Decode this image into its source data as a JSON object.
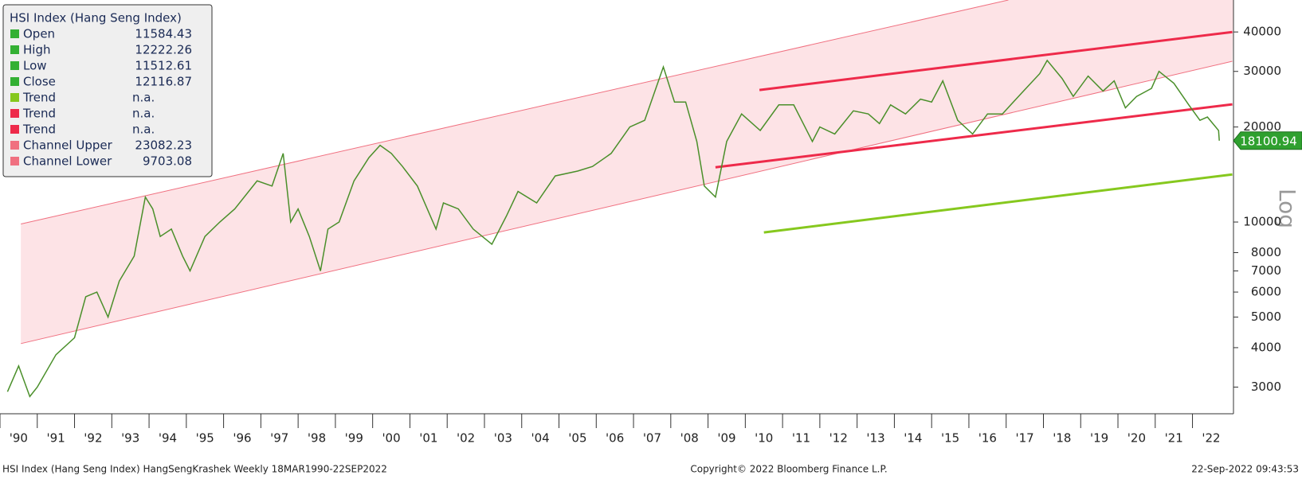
{
  "chart_data": {
    "type": "line",
    "log_scale": true,
    "xlim": [
      1990,
      2023.1
    ],
    "ylim": [
      2470,
      50500
    ],
    "yticks": [
      3000,
      4000,
      5000,
      6000,
      7000,
      8000,
      10000,
      20000,
      30000,
      40000
    ],
    "xticks": [
      {
        "value": 1990.5,
        "label": "'90"
      },
      {
        "value": 1991.5,
        "label": "'91"
      },
      {
        "value": 1992.5,
        "label": "'92"
      },
      {
        "value": 1993.5,
        "label": "'93"
      },
      {
        "value": 1994.5,
        "label": "'94"
      },
      {
        "value": 1995.5,
        "label": "'95"
      },
      {
        "value": 1996.5,
        "label": "'96"
      },
      {
        "value": 1997.5,
        "label": "'97"
      },
      {
        "value": 1998.5,
        "label": "'98"
      },
      {
        "value": 1999.5,
        "label": "'99"
      },
      {
        "value": 2000.5,
        "label": "'00"
      },
      {
        "value": 2001.5,
        "label": "'01"
      },
      {
        "value": 2002.5,
        "label": "'02"
      },
      {
        "value": 2003.5,
        "label": "'03"
      },
      {
        "value": 2004.5,
        "label": "'04"
      },
      {
        "value": 2005.5,
        "label": "'05"
      },
      {
        "value": 2006.5,
        "label": "'06"
      },
      {
        "value": 2007.5,
        "label": "'07"
      },
      {
        "value": 2008.5,
        "label": "'08"
      },
      {
        "value": 2009.5,
        "label": "'09"
      },
      {
        "value": 2010.5,
        "label": "'10"
      },
      {
        "value": 2011.5,
        "label": "'11"
      },
      {
        "value": 2012.5,
        "label": "'12"
      },
      {
        "value": 2013.5,
        "label": "'13"
      },
      {
        "value": 2014.5,
        "label": "'14"
      },
      {
        "value": 2015.5,
        "label": "'15"
      },
      {
        "value": 2016.5,
        "label": "'16"
      },
      {
        "value": 2017.5,
        "label": "'17"
      },
      {
        "value": 2018.5,
        "label": "'18"
      },
      {
        "value": 2019.5,
        "label": "'19"
      },
      {
        "value": 2020.5,
        "label": "'20"
      },
      {
        "value": 2021.5,
        "label": "'21"
      },
      {
        "value": 2022.5,
        "label": "'22"
      }
    ],
    "scale_label": "Log",
    "legend_title": "HSI Index (Hang Seng Index)",
    "legend": [
      {
        "name": "Open",
        "value": 11584.43,
        "color": "#33b033"
      },
      {
        "name": "High",
        "value": 12222.26,
        "color": "#33b033"
      },
      {
        "name": "Low",
        "value": 11512.61,
        "color": "#33b033"
      },
      {
        "name": "Close",
        "value": 12116.87,
        "color": "#33b033"
      },
      {
        "name": "Trend",
        "value": "n.a.",
        "color": "#86c81e"
      },
      {
        "name": "Trend",
        "value": "n.a.",
        "color": "#ee2a4a"
      },
      {
        "name": "Trend",
        "value": "n.a.",
        "color": "#ee2a4a"
      },
      {
        "name": "Channel Upper",
        "value": 23082.23,
        "color": "#f07080"
      },
      {
        "name": "Channel Lower",
        "value": 9703.08,
        "color": "#f07080"
      }
    ],
    "last_value": 18100.94,
    "last_color": "#2fa02f",
    "series": [
      {
        "color": "#4a8f2a",
        "x": [
          1990.2,
          1990.5,
          1990.8,
          1991.0,
          1991.5,
          1992.0,
          1992.3,
          1992.6,
          1992.9,
          1993.2,
          1993.6,
          1993.9,
          1994.1,
          1994.3,
          1994.6,
          1994.9,
          1995.1,
          1995.5,
          1995.9,
          1996.3,
          1996.9,
          1997.3,
          1997.6,
          1997.8,
          1998.0,
          1998.3,
          1998.6,
          1998.8,
          1999.1,
          1999.5,
          1999.9,
          2000.2,
          2000.5,
          2000.8,
          2001.2,
          2001.7,
          2001.9,
          2002.3,
          2002.7,
          2003.2,
          2003.6,
          2003.9,
          2004.4,
          2004.9,
          2005.5,
          2005.9,
          2006.4,
          2006.9,
          2007.3,
          2007.8,
          2008.1,
          2008.4,
          2008.7,
          2008.9,
          2009.2,
          2009.5,
          2009.9,
          2010.4,
          2010.9,
          2011.3,
          2011.8,
          2012.0,
          2012.4,
          2012.9,
          2013.3,
          2013.6,
          2013.9,
          2014.3,
          2014.7,
          2015.0,
          2015.3,
          2015.7,
          2016.1,
          2016.5,
          2016.9,
          2017.4,
          2017.9,
          2018.1,
          2018.5,
          2018.8,
          2019.2,
          2019.6,
          2019.9,
          2020.2,
          2020.5,
          2020.9,
          2021.1,
          2021.5,
          2021.9,
          2022.2,
          2022.4,
          2022.7,
          2022.72
        ],
        "values": [
          2900,
          3500,
          2800,
          3000,
          3800,
          4300,
          5800,
          6000,
          5000,
          6500,
          7800,
          12000,
          11000,
          9000,
          9500,
          7800,
          7000,
          9000,
          10000,
          11000,
          13500,
          13000,
          16500,
          10000,
          11000,
          9000,
          7000,
          9500,
          10000,
          13500,
          16000,
          17500,
          16500,
          15000,
          13000,
          9500,
          11500,
          11000,
          9500,
          8500,
          10500,
          12500,
          11500,
          14000,
          14500,
          15000,
          16500,
          20000,
          21000,
          31000,
          24000,
          24000,
          18000,
          13000,
          12000,
          18000,
          22000,
          19500,
          23500,
          23500,
          18000,
          20000,
          19000,
          22500,
          22000,
          20500,
          23500,
          22000,
          24500,
          24000,
          28000,
          21000,
          19000,
          22000,
          22000,
          25500,
          29500,
          32500,
          28500,
          25000,
          29000,
          26000,
          28000,
          23000,
          25000,
          26500,
          30000,
          27500,
          23500,
          21000,
          21500,
          19500,
          18100
        ]
      }
    ],
    "overlays": [
      {
        "color": "#ee2a4a",
        "x": [
          2010.38,
          2023.07
        ],
        "values": [
          26200,
          40000
        ]
      },
      {
        "color": "#ee2a4a",
        "x": [
          2009.2,
          2023.07
        ],
        "values": [
          14900,
          23600
        ]
      },
      {
        "color": "#86c81e",
        "x": [
          2010.5,
          2023.07
        ],
        "values": [
          9270,
          14150
        ]
      }
    ],
    "channel": {
      "color": "#fde3e6",
      "line_color": "#f07080",
      "upper": {
        "x": [
          1990.56,
          2017.06
        ],
        "values": [
          9860,
          50500
        ]
      },
      "lower": {
        "x": [
          1990.56,
          2023.07
        ],
        "values": [
          4120,
          32300
        ]
      }
    },
    "footer_left": "HSI Index (Hang Seng Index) HangSengKrashek  Weekly 18MAR1990-22SEP2022",
    "footer_center": "Copyright© 2022 Bloomberg Finance L.P.",
    "footer_right": "22-Sep-2022 09:43:53"
  }
}
